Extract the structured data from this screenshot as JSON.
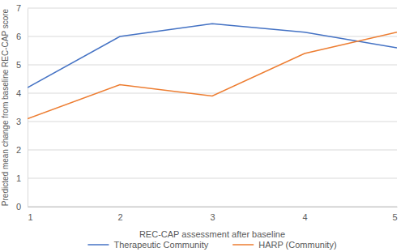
{
  "chart_data": {
    "type": "line",
    "x_label": "REC-CAP assessment after baseline",
    "y_label": "Predicted mean change from baseline REC-CAP score",
    "x": [
      1,
      2,
      3,
      4,
      5
    ],
    "series": [
      {
        "name": "Therapeutic Community",
        "color": "#4472c4",
        "values": [
          4.2,
          6.0,
          6.45,
          6.15,
          5.6
        ]
      },
      {
        "name": "HARP (Community)",
        "color": "#ed7d31",
        "values": [
          3.1,
          4.3,
          3.9,
          5.4,
          6.15
        ]
      }
    ],
    "xlim": [
      1,
      5
    ],
    "xticks": [
      1,
      2,
      3,
      4,
      5
    ],
    "ylim": [
      0,
      7
    ],
    "yticks": [
      0,
      1,
      2,
      3,
      4,
      5,
      6,
      7
    ],
    "grid": true,
    "legend": "bottom"
  }
}
